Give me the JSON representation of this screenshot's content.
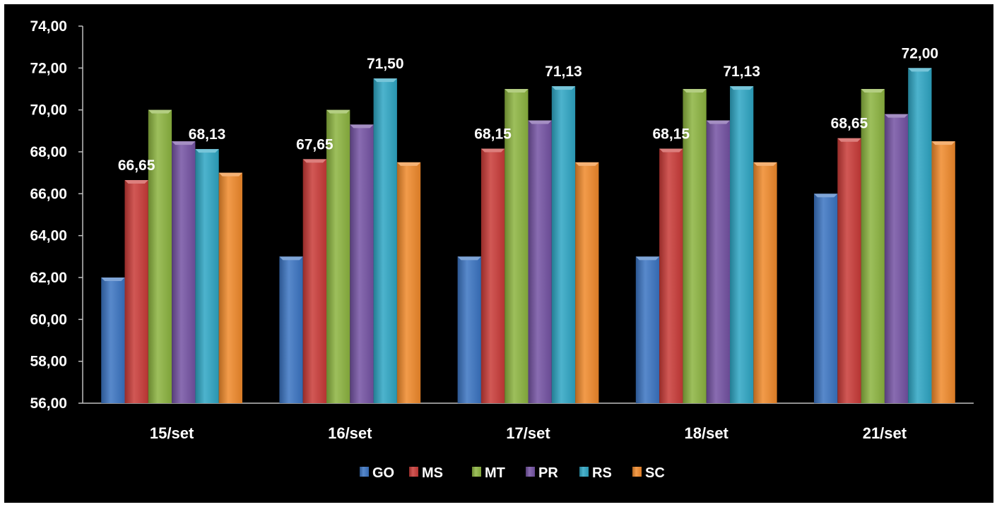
{
  "chart_data": {
    "type": "bar",
    "categories": [
      "15/set",
      "16/set",
      "17/set",
      "18/set",
      "21/set"
    ],
    "series": [
      {
        "name": "GO",
        "color": "#3a74c2",
        "values": [
          62.0,
          63.0,
          63.0,
          63.0,
          66.0
        ],
        "labels": [
          "",
          "",
          "",
          "",
          ""
        ]
      },
      {
        "name": "MS",
        "color": "#c93a37",
        "values": [
          66.65,
          67.65,
          68.15,
          68.15,
          68.65
        ],
        "labels": [
          "66,65",
          "67,65",
          "68,15",
          "68,15",
          "68,65"
        ]
      },
      {
        "name": "MT",
        "color": "#8cb43f",
        "values": [
          70.0,
          70.0,
          71.0,
          71.0,
          71.0
        ],
        "labels": [
          "",
          "",
          "",
          "",
          ""
        ]
      },
      {
        "name": "PR",
        "color": "#7452a3",
        "values": [
          68.5,
          69.3,
          69.5,
          69.5,
          69.8
        ],
        "labels": [
          "",
          "",
          "",
          "",
          ""
        ]
      },
      {
        "name": "RS",
        "color": "#2ea6c4",
        "values": [
          68.13,
          71.5,
          71.13,
          71.13,
          72.0
        ],
        "labels": [
          "68,13",
          "71,50",
          "71,13",
          "71,13",
          "72,00"
        ]
      },
      {
        "name": "SC",
        "color": "#f0892a",
        "values": [
          67.0,
          67.5,
          67.5,
          67.5,
          68.5
        ],
        "labels": [
          "",
          "",
          "",
          "",
          ""
        ]
      }
    ],
    "ylim": [
      56,
      74
    ],
    "yticks": [
      "56,00",
      "58,00",
      "60,00",
      "62,00",
      "64,00",
      "66,00",
      "68,00",
      "70,00",
      "72,00",
      "74,00"
    ],
    "title": "",
    "xlabel": "",
    "ylabel": "",
    "grid": false,
    "legend_position": "bottom",
    "background": "#000000",
    "text_color": "#ffffff"
  }
}
